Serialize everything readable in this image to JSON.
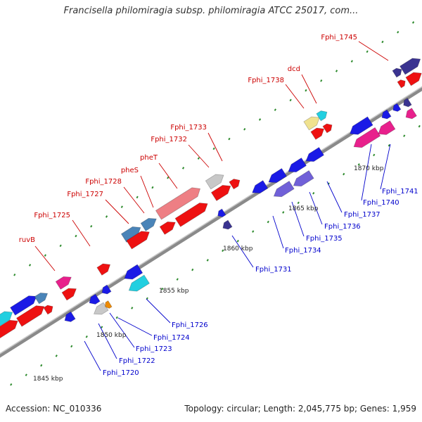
{
  "title": "Francisella philomiragia subsp. philomiragia ATCC 25017, com...",
  "footer": {
    "accession": "Accession: NC_010336",
    "topology": "Topology: circular; Length: 2,045,775 bp; Genes: 1,959"
  },
  "colors": {
    "backbone": "#8a8a8a",
    "forward_label": "#cc0000",
    "reverse_label": "#0000cc",
    "tick": "#2e8b2e",
    "red": "#ee1111",
    "blue": "#1a1ae6",
    "pink": "#e8208c",
    "light_red": "#ee7f84",
    "cyan": "#22cfe0",
    "steel": "#4a84b8",
    "navy": "#3a3390",
    "purple": "#7060d8",
    "gray": "#c8c8c8",
    "yellow": "#f0e28f",
    "orange": "#ee8a00"
  },
  "kbp_labels": [
    "1845 kbp",
    "1850 kbp",
    "1855 kbp",
    "1860 kbp",
    "1865 kbp",
    "1870 kbp"
  ],
  "forward_labels": [
    "ruvB",
    "Fphi_1725",
    "Fphi_1727",
    "Fphi_1728",
    "pheS",
    "pheT",
    "Fphi_1732",
    "Fphi_1733",
    "Fphi_1738",
    "dcd",
    "Fphi_1745"
  ],
  "reverse_labels": [
    "Fphi_1720",
    "Fphi_1722",
    "Fphi_1723",
    "Fphi_1724",
    "Fphi_1726",
    "Fphi_1731",
    "Fphi_1734",
    "Fphi_1735",
    "Fphi_1736",
    "Fphi_1737",
    "Fphi_1740",
    "Fphi_1741"
  ]
}
